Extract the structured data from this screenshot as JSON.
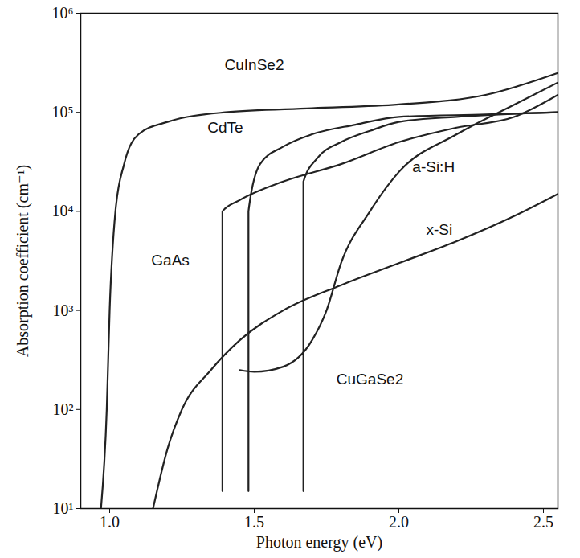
{
  "chart_data": {
    "type": "line",
    "x_label": "Photon energy (eV)",
    "y_label": "Absorption coefficient (cm⁻¹)",
    "log": "y",
    "grid": false,
    "xlim": [
      0.9,
      2.55
    ],
    "xticks": [
      {
        "value": 1.0,
        "label": "1.0"
      },
      1.5,
      {
        "value": 2.0,
        "label": "2.0"
      },
      2.5
    ],
    "ylim": [
      10,
      1000000
    ],
    "yticks": [
      {
        "value": 10,
        "label": "10¹"
      },
      {
        "value": 100,
        "label": "10²"
      },
      {
        "value": 1000,
        "label": "10³"
      },
      {
        "value": 10000,
        "label": "10⁴"
      },
      {
        "value": 100000,
        "label": "10⁵"
      },
      {
        "value": 1000000,
        "label": "10⁶"
      }
    ],
    "series": [
      {
        "name": "CuInSe2",
        "color": "#222222",
        "x": [
          0.97,
          0.99,
          1.0,
          1.02,
          1.05,
          1.1,
          1.2,
          1.4,
          1.7,
          2.0,
          2.3,
          2.55
        ],
        "values": [
          10,
          100,
          1000,
          10000,
          30000,
          60000,
          80000,
          100000,
          110000,
          120000,
          150000,
          250000
        ]
      },
      {
        "name": "GaAs",
        "color": "#222222",
        "x": [
          1.39,
          1.39,
          1.45,
          1.6,
          1.8,
          2.0,
          2.2,
          2.4,
          2.55
        ],
        "values": [
          15,
          10000,
          13000,
          20000,
          30000,
          50000,
          70000,
          90000,
          150000
        ]
      },
      {
        "name": "CdTe",
        "color": "#222222",
        "x": [
          1.48,
          1.48,
          1.52,
          1.6,
          1.7,
          1.85,
          2.0,
          2.3,
          2.55
        ],
        "values": [
          15,
          10000,
          30000,
          45000,
          60000,
          75000,
          90000,
          95000,
          100000
        ]
      },
      {
        "name": "a-Si:H",
        "color": "#222222",
        "x": [
          1.45,
          1.5,
          1.6,
          1.7,
          1.75,
          1.8,
          1.9,
          2.0,
          2.2,
          2.4,
          2.55
        ],
        "values": [
          250,
          240,
          270,
          500,
          1000,
          3000,
          10000,
          25000,
          60000,
          120000,
          200000
        ]
      },
      {
        "name": "x-Si",
        "color": "#222222",
        "x": [
          1.15,
          1.2,
          1.25,
          1.35,
          1.45,
          1.6,
          1.8,
          2.0,
          2.2,
          2.4,
          2.55
        ],
        "values": [
          10,
          40,
          100,
          250,
          500,
          1000,
          1800,
          3000,
          5000,
          9000,
          15000
        ]
      },
      {
        "name": "CuGaSe2",
        "color": "#222222",
        "x": [
          1.67,
          1.67,
          1.72,
          1.8,
          1.9,
          2.0,
          2.2,
          2.55
        ],
        "values": [
          15,
          20000,
          35000,
          50000,
          65000,
          80000,
          90000,
          100000
        ]
      }
    ],
    "annotations": [
      {
        "text": "CuInSe2",
        "x": 1.5,
        "y": 300000
      },
      {
        "text": "CdTe",
        "x": 1.4,
        "y": 70000
      },
      {
        "text": "GaAs",
        "x": 1.21,
        "y": 3200
      },
      {
        "text": "a-Si:H",
        "x": 2.12,
        "y": 28000
      },
      {
        "text": "x-Si",
        "x": 2.14,
        "y": 6500
      },
      {
        "text": "CuGaSe2",
        "x": 1.9,
        "y": 200
      }
    ]
  }
}
